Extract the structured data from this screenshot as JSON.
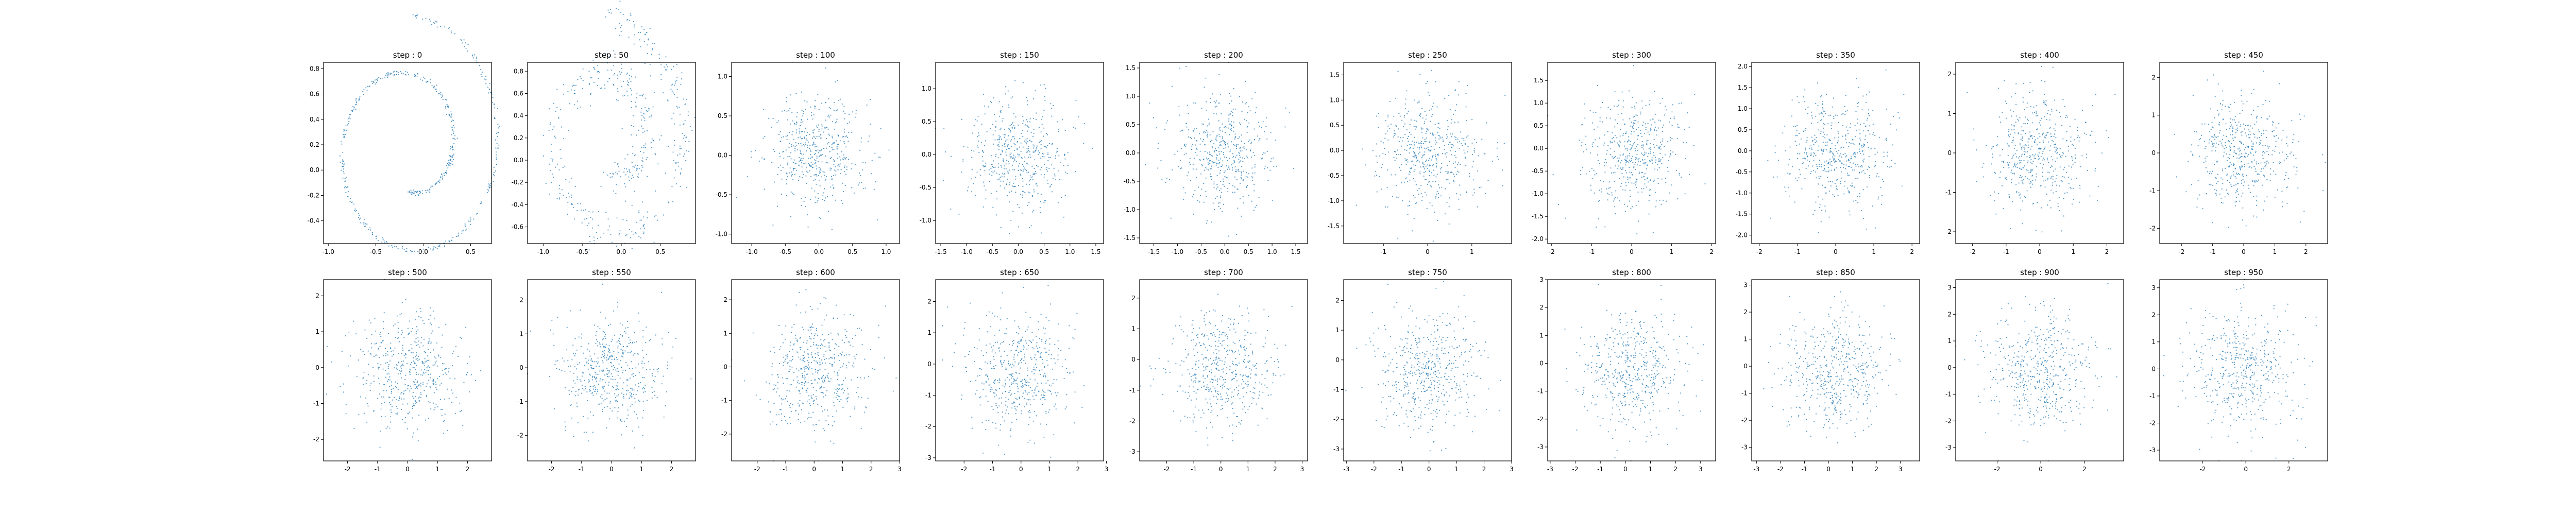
{
  "figure": {
    "background": "#ffffff",
    "marker_color": "#1f77b4",
    "grid": false
  },
  "chart_data": [
    {
      "type": "scatter",
      "title": "step : 0",
      "xlim": [
        -1.05,
        0.72
      ],
      "ylim": [
        -0.58,
        0.85
      ],
      "xticks": [
        "-1.0",
        "-0.5",
        "0.0",
        "0.5"
      ],
      "yticks": [
        "0.8",
        "0.6",
        "0.4",
        "0.2",
        "0.0",
        "-0.2",
        "-0.4"
      ],
      "distribution": "swiss-roll spiral",
      "n_points": 500
    },
    {
      "type": "scatter",
      "title": "step : 50",
      "xlim": [
        -1.2,
        0.95
      ],
      "ylim": [
        -0.75,
        0.88
      ],
      "xticks": [
        "-1.0",
        "-0.5",
        "0.0",
        "0.5"
      ],
      "yticks": [
        "0.8",
        "0.6",
        "0.4",
        "0.2",
        "0.0",
        "-0.2",
        "-0.4",
        "-0.6"
      ],
      "distribution": "noisy spiral",
      "n_points": 500
    },
    {
      "type": "scatter",
      "title": "step : 100",
      "xlim": [
        -1.3,
        1.2
      ],
      "ylim": [
        -1.12,
        1.18
      ],
      "xticks": [
        "-1.0",
        "-0.5",
        "0.0",
        "0.5",
        "1.0"
      ],
      "yticks": [
        "1.0",
        "0.5",
        "0.0",
        "-0.5",
        "-1.0"
      ],
      "distribution": "isotropic gaussian",
      "n_points": 500
    },
    {
      "type": "scatter",
      "title": "step : 150",
      "xlim": [
        -1.6,
        1.65
      ],
      "ylim": [
        -1.35,
        1.4
      ],
      "xticks": [
        "-1.5",
        "-1.0",
        "-0.5",
        "0.0",
        "0.5",
        "1.0",
        "1.5"
      ],
      "yticks": [
        "1.0",
        "0.5",
        "0.0",
        "-0.5",
        "-1.0"
      ],
      "distribution": "isotropic gaussian",
      "n_points": 500
    },
    {
      "type": "scatter",
      "title": "step : 200",
      "xlim": [
        -1.8,
        1.75
      ],
      "ylim": [
        -1.6,
        1.6
      ],
      "xticks": [
        "-1.5",
        "-1.0",
        "-0.5",
        "0.0",
        "0.5",
        "1.0",
        "1.5"
      ],
      "yticks": [
        "1.5",
        "1.0",
        "0.5",
        "0.0",
        "-0.5",
        "-1.0",
        "-1.5"
      ],
      "distribution": "isotropic gaussian",
      "n_points": 500
    },
    {
      "type": "scatter",
      "title": "step : 250",
      "xlim": [
        -1.9,
        1.9
      ],
      "ylim": [
        -1.85,
        1.75
      ],
      "xticks": [
        "-1",
        "0",
        "1"
      ],
      "yticks": [
        "1.5",
        "1.0",
        "0.5",
        "0.0",
        "-0.5",
        "-1.0",
        "-1.5"
      ],
      "distribution": "isotropic gaussian",
      "n_points": 500
    },
    {
      "type": "scatter",
      "title": "step : 300",
      "xlim": [
        -2.1,
        2.1
      ],
      "ylim": [
        -2.1,
        1.9
      ],
      "xticks": [
        "-2",
        "-1",
        "0",
        "1",
        "2"
      ],
      "yticks": [
        "1.5",
        "1.0",
        "0.5",
        "0.0",
        "-0.5",
        "-1.0",
        "-1.5",
        "-2.0"
      ],
      "distribution": "isotropic gaussian",
      "n_points": 500
    },
    {
      "type": "scatter",
      "title": "step : 350",
      "xlim": [
        -2.2,
        2.2
      ],
      "ylim": [
        -2.2,
        2.1
      ],
      "xticks": [
        "-2",
        "-1",
        "0",
        "1",
        "2"
      ],
      "yticks": [
        "2.0",
        "1.5",
        "1.0",
        "0.5",
        "0.0",
        "-0.5",
        "-1.0",
        "-1.5",
        "-2.0"
      ],
      "distribution": "isotropic gaussian",
      "n_points": 500
    },
    {
      "type": "scatter",
      "title": "step : 400",
      "xlim": [
        -2.5,
        2.5
      ],
      "ylim": [
        -2.3,
        2.3
      ],
      "xticks": [
        "-2",
        "-1",
        "0",
        "1",
        "2"
      ],
      "yticks": [
        "2",
        "1",
        "0",
        "-1",
        "-2"
      ],
      "distribution": "isotropic gaussian",
      "n_points": 500
    },
    {
      "type": "scatter",
      "title": "step : 450",
      "xlim": [
        -2.7,
        2.7
      ],
      "ylim": [
        -2.4,
        2.4
      ],
      "xticks": [
        "-2",
        "-1",
        "0",
        "1",
        "2"
      ],
      "yticks": [
        "2",
        "1",
        "0",
        "-1",
        "-2"
      ],
      "distribution": "isotropic gaussian",
      "n_points": 500
    },
    {
      "type": "scatter",
      "title": "step : 500",
      "xlim": [
        -2.8,
        2.8
      ],
      "ylim": [
        -2.6,
        2.45
      ],
      "xticks": [
        "-2",
        "-1",
        "0",
        "1",
        "2"
      ],
      "yticks": [
        "2",
        "1",
        "0",
        "-1",
        "-2"
      ],
      "distribution": "isotropic gaussian",
      "n_points": 500
    },
    {
      "type": "scatter",
      "title": "step : 550",
      "xlim": [
        -2.8,
        2.8
      ],
      "ylim": [
        -2.75,
        2.6
      ],
      "xticks": [
        "-2",
        "-1",
        "0",
        "1",
        "2"
      ],
      "yticks": [
        "2",
        "1",
        "0",
        "-1",
        "-2"
      ],
      "distribution": "isotropic gaussian",
      "n_points": 500
    },
    {
      "type": "scatter",
      "title": "step : 600",
      "xlim": [
        -2.9,
        3.0
      ],
      "ylim": [
        -2.8,
        2.6
      ],
      "xticks": [
        "-2",
        "-1",
        "0",
        "1",
        "2",
        "3"
      ],
      "yticks": [
        "2",
        "1",
        "0",
        "-1",
        "-2"
      ],
      "distribution": "isotropic gaussian",
      "n_points": 500
    },
    {
      "type": "scatter",
      "title": "step : 650",
      "xlim": [
        -3.0,
        2.9
      ],
      "ylim": [
        -3.1,
        2.7
      ],
      "xticks": [
        "-2",
        "-1",
        "0",
        "1",
        "2",
        "3"
      ],
      "yticks": [
        "2",
        "1",
        "0",
        "-1",
        "-2",
        "-3"
      ],
      "distribution": "isotropic gaussian",
      "n_points": 500
    },
    {
      "type": "scatter",
      "title": "step : 700",
      "xlim": [
        -3.0,
        3.2
      ],
      "ylim": [
        -3.3,
        2.6
      ],
      "xticks": [
        "-2",
        "-1",
        "0",
        "1",
        "2",
        "3"
      ],
      "yticks": [
        "2",
        "1",
        "0",
        "-1",
        "-2",
        "-3"
      ],
      "distribution": "isotropic gaussian",
      "n_points": 500
    },
    {
      "type": "scatter",
      "title": "step : 750",
      "xlim": [
        -3.1,
        3.0
      ],
      "ylim": [
        -3.4,
        2.7
      ],
      "xticks": [
        "-3",
        "-2",
        "-1",
        "0",
        "1",
        "2",
        "3"
      ],
      "yticks": [
        "2",
        "1",
        "0",
        "-1",
        "-2",
        "-3"
      ],
      "distribution": "isotropic gaussian",
      "n_points": 500
    },
    {
      "type": "scatter",
      "title": "step : 800",
      "xlim": [
        -3.1,
        3.6
      ],
      "ylim": [
        -3.5,
        3.0
      ],
      "xticks": [
        "-3",
        "-2",
        "-1",
        "0",
        "1",
        "2",
        "3"
      ],
      "yticks": [
        "3",
        "2",
        "1",
        "0",
        "-1",
        "-2",
        "-3"
      ],
      "distribution": "isotropic gaussian",
      "n_points": 500
    },
    {
      "type": "scatter",
      "title": "step : 850",
      "xlim": [
        -3.2,
        3.8
      ],
      "ylim": [
        -3.5,
        3.2
      ],
      "xticks": [
        "-3",
        "-2",
        "-1",
        "0",
        "1",
        "2",
        "3"
      ],
      "yticks": [
        "3",
        "2",
        "1",
        "0",
        "-1",
        "-2",
        "-3"
      ],
      "distribution": "isotropic gaussian",
      "n_points": 500
    },
    {
      "type": "scatter",
      "title": "step : 900",
      "xlim": [
        -3.9,
        3.8
      ],
      "ylim": [
        -3.5,
        3.3
      ],
      "xticks": [
        "-2",
        "0",
        "2"
      ],
      "yticks": [
        "3",
        "2",
        "1",
        "0",
        "-1",
        "-2",
        "-3"
      ],
      "distribution": "isotropic gaussian",
      "n_points": 500
    },
    {
      "type": "scatter",
      "title": "step : 950",
      "xlim": [
        -4.0,
        3.8
      ],
      "ylim": [
        -3.4,
        3.3
      ],
      "xticks": [
        "-2",
        "0",
        "2"
      ],
      "yticks": [
        "3",
        "2",
        "1",
        "0",
        "-1",
        "-2",
        "-3"
      ],
      "distribution": "isotropic gaussian",
      "n_points": 500
    }
  ]
}
